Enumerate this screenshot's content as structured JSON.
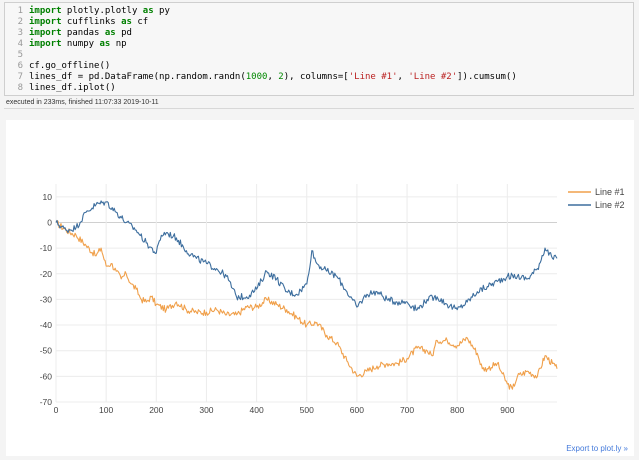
{
  "code": {
    "lines": [
      {
        "n": "1",
        "tokens": [
          {
            "t": "import",
            "c": "kw"
          },
          {
            "t": " plotly.plotly ",
            "c": ""
          },
          {
            "t": "as",
            "c": "kw"
          },
          {
            "t": " py",
            "c": ""
          }
        ]
      },
      {
        "n": "2",
        "tokens": [
          {
            "t": "import",
            "c": "kw"
          },
          {
            "t": " cufflinks ",
            "c": ""
          },
          {
            "t": "as",
            "c": "kw"
          },
          {
            "t": " cf",
            "c": ""
          }
        ]
      },
      {
        "n": "3",
        "tokens": [
          {
            "t": "import",
            "c": "kw"
          },
          {
            "t": " pandas ",
            "c": ""
          },
          {
            "t": "as",
            "c": "kw"
          },
          {
            "t": " pd",
            "c": ""
          }
        ]
      },
      {
        "n": "4",
        "tokens": [
          {
            "t": "import",
            "c": "kw"
          },
          {
            "t": " numpy ",
            "c": ""
          },
          {
            "t": "as",
            "c": "kw"
          },
          {
            "t": " np",
            "c": ""
          }
        ]
      },
      {
        "n": "5",
        "tokens": []
      },
      {
        "n": "6",
        "tokens": [
          {
            "t": "cf.go_offline()",
            "c": ""
          }
        ]
      },
      {
        "n": "7",
        "tokens": [
          {
            "t": "lines_df = pd.DataFrame(np.random.randn(",
            "c": ""
          },
          {
            "t": "1000",
            "c": "num"
          },
          {
            "t": ", ",
            "c": ""
          },
          {
            "t": "2",
            "c": "num"
          },
          {
            "t": "), columns=[",
            "c": ""
          },
          {
            "t": "'Line #1'",
            "c": "str"
          },
          {
            "t": ", ",
            "c": ""
          },
          {
            "t": "'Line #2'",
            "c": "str"
          },
          {
            "t": "]).cumsum()",
            "c": ""
          }
        ]
      },
      {
        "n": "8",
        "tokens": [
          {
            "t": "lines_df.iplot()",
            "c": ""
          }
        ]
      }
    ]
  },
  "exec_status": "executed in 233ms, finished 11:07:33 2019-10-11",
  "export_link": "Export to plot.ly »",
  "chart_data": {
    "type": "line",
    "xlim": [
      0,
      999
    ],
    "ylim": [
      -70,
      15
    ],
    "xticks": [
      0,
      100,
      200,
      300,
      400,
      500,
      600,
      700,
      800,
      900
    ],
    "yticks": [
      10,
      0,
      -10,
      -20,
      -30,
      -40,
      -50,
      -60,
      -70
    ],
    "grid": true,
    "legend": "top-right",
    "series": [
      {
        "name": "Line #1",
        "color": "#f0a04b",
        "points": [
          [
            0,
            0
          ],
          [
            20,
            -3
          ],
          [
            40,
            -5
          ],
          [
            60,
            -9
          ],
          [
            80,
            -13
          ],
          [
            90,
            -10
          ],
          [
            100,
            -17
          ],
          [
            110,
            -16
          ],
          [
            120,
            -19
          ],
          [
            130,
            -22
          ],
          [
            140,
            -20
          ],
          [
            150,
            -24
          ],
          [
            160,
            -26
          ],
          [
            170,
            -30
          ],
          [
            180,
            -31
          ],
          [
            190,
            -29
          ],
          [
            200,
            -32
          ],
          [
            220,
            -34
          ],
          [
            240,
            -31
          ],
          [
            260,
            -34
          ],
          [
            280,
            -35
          ],
          [
            300,
            -35
          ],
          [
            320,
            -34
          ],
          [
            340,
            -36
          ],
          [
            360,
            -36
          ],
          [
            380,
            -33
          ],
          [
            400,
            -33
          ],
          [
            420,
            -30
          ],
          [
            440,
            -32
          ],
          [
            460,
            -34
          ],
          [
            480,
            -37
          ],
          [
            500,
            -40
          ],
          [
            520,
            -39
          ],
          [
            540,
            -44
          ],
          [
            560,
            -47
          ],
          [
            580,
            -54
          ],
          [
            600,
            -60
          ],
          [
            620,
            -58
          ],
          [
            640,
            -56
          ],
          [
            660,
            -55
          ],
          [
            680,
            -55
          ],
          [
            700,
            -53
          ],
          [
            720,
            -49
          ],
          [
            740,
            -50
          ],
          [
            750,
            -52
          ],
          [
            760,
            -46
          ],
          [
            780,
            -46
          ],
          [
            800,
            -48
          ],
          [
            820,
            -45
          ],
          [
            840,
            -51
          ],
          [
            850,
            -57
          ],
          [
            860,
            -57
          ],
          [
            880,
            -55
          ],
          [
            890,
            -59
          ],
          [
            900,
            -63
          ],
          [
            910,
            -65
          ],
          [
            920,
            -60
          ],
          [
            940,
            -58
          ],
          [
            960,
            -60
          ],
          [
            975,
            -52
          ],
          [
            990,
            -55
          ],
          [
            999,
            -57
          ]
        ]
      },
      {
        "name": "Line #2",
        "color": "#3d6e9e",
        "points": [
          [
            0,
            0
          ],
          [
            20,
            -3
          ],
          [
            40,
            -2
          ],
          [
            60,
            4
          ],
          [
            80,
            7
          ],
          [
            100,
            8
          ],
          [
            120,
            4
          ],
          [
            140,
            0
          ],
          [
            160,
            -3
          ],
          [
            180,
            -8
          ],
          [
            200,
            -12
          ],
          [
            210,
            -5
          ],
          [
            220,
            -4
          ],
          [
            240,
            -6
          ],
          [
            260,
            -11
          ],
          [
            280,
            -14
          ],
          [
            300,
            -16
          ],
          [
            320,
            -18
          ],
          [
            340,
            -21
          ],
          [
            360,
            -29
          ],
          [
            380,
            -29
          ],
          [
            400,
            -26
          ],
          [
            420,
            -19
          ],
          [
            440,
            -22
          ],
          [
            460,
            -27
          ],
          [
            480,
            -28
          ],
          [
            500,
            -24
          ],
          [
            510,
            -11
          ],
          [
            520,
            -16
          ],
          [
            540,
            -19
          ],
          [
            560,
            -21
          ],
          [
            580,
            -27
          ],
          [
            600,
            -33
          ],
          [
            620,
            -28
          ],
          [
            640,
            -27
          ],
          [
            660,
            -30
          ],
          [
            680,
            -31
          ],
          [
            700,
            -31
          ],
          [
            720,
            -34
          ],
          [
            740,
            -30
          ],
          [
            760,
            -29
          ],
          [
            780,
            -32
          ],
          [
            800,
            -34
          ],
          [
            820,
            -31
          ],
          [
            840,
            -27
          ],
          [
            860,
            -25
          ],
          [
            880,
            -23
          ],
          [
            900,
            -21
          ],
          [
            920,
            -21
          ],
          [
            940,
            -22
          ],
          [
            960,
            -18
          ],
          [
            975,
            -10
          ],
          [
            990,
            -14
          ],
          [
            999,
            -14
          ]
        ]
      }
    ]
  }
}
